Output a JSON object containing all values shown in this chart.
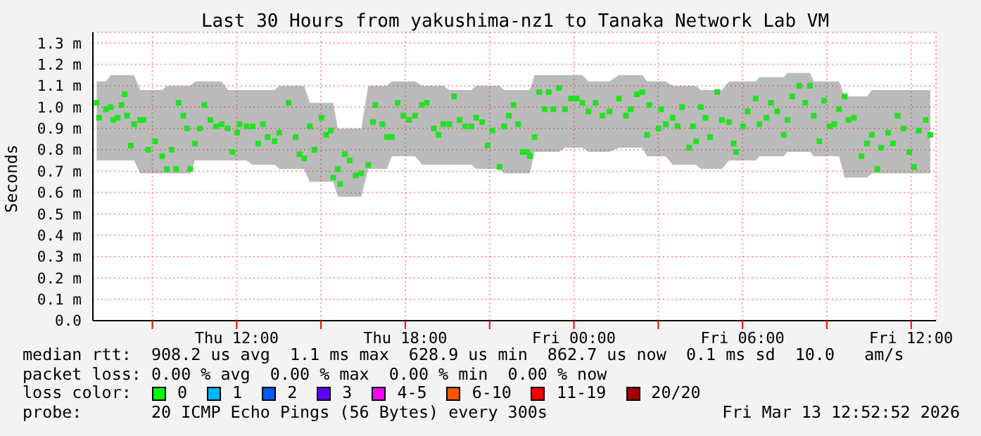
{
  "chart_data": {
    "type": "scatter",
    "title": "Last 30 Hours from yakushima-nz1 to Tanaka Network Lab VM",
    "ylabel": "Seconds",
    "xlim": [
      "2026-03-12T06:53",
      "2026-03-13T12:53"
    ],
    "xticks": [
      {
        "value": "2026-03-12T09:00",
        "label": null
      },
      {
        "value": "2026-03-12T12:00",
        "label": "Thu 12:00"
      },
      {
        "value": "2026-03-12T15:00",
        "label": null
      },
      {
        "value": "2026-03-12T18:00",
        "label": "Thu 18:00"
      },
      {
        "value": "2026-03-12T21:00",
        "label": null
      },
      {
        "value": "2026-03-13T00:00",
        "label": "Fri 00:00"
      },
      {
        "value": "2026-03-13T03:00",
        "label": null
      },
      {
        "value": "2026-03-13T06:00",
        "label": "Fri 06:00"
      },
      {
        "value": "2026-03-13T09:00",
        "label": null
      },
      {
        "value": "2026-03-13T12:00",
        "label": "Fri 12:00"
      }
    ],
    "ylim": [
      0,
      1.35
    ],
    "yticks": [
      {
        "value": 0,
        "label": "0.0"
      },
      {
        "value": 0.1,
        "label": "0.1 m"
      },
      {
        "value": 0.2,
        "label": "0.2 m"
      },
      {
        "value": 0.3,
        "label": "0.3 m"
      },
      {
        "value": 0.4,
        "label": "0.4 m"
      },
      {
        "value": 0.5,
        "label": "0.5 m"
      },
      {
        "value": 0.6,
        "label": "0.6 m"
      },
      {
        "value": 0.7,
        "label": "0.7 m"
      },
      {
        "value": 0.8,
        "label": "0.8 m"
      },
      {
        "value": 0.9,
        "label": "0.9 m"
      },
      {
        "value": 1.0,
        "label": "1.0 m"
      },
      {
        "value": 1.1,
        "label": "1.1 m"
      },
      {
        "value": 1.2,
        "label": "1.2 m"
      },
      {
        "value": 1.3,
        "label": "1.3 m"
      }
    ],
    "grid": true,
    "marker": "square",
    "series": [
      {
        "color": "#22e022",
        "x": [
          "2026-03-12T07:01",
          "2026-03-12T07:06",
          "2026-03-12T07:21",
          "2026-03-12T07:31",
          "2026-03-12T07:36",
          "2026-03-12T07:46",
          "2026-03-12T07:54",
          "2026-03-12T08:01",
          "2026-03-12T08:06",
          "2026-03-12T08:14",
          "2026-03-12T08:21",
          "2026-03-12T08:34",
          "2026-03-12T08:41",
          "2026-03-12T08:51",
          "2026-03-12T09:06",
          "2026-03-12T09:21",
          "2026-03-12T09:31",
          "2026-03-12T09:41",
          "2026-03-12T09:51",
          "2026-03-12T09:56",
          "2026-03-12T10:06",
          "2026-03-12T10:14",
          "2026-03-12T10:21",
          "2026-03-12T10:31",
          "2026-03-12T10:41",
          "2026-03-12T10:51",
          "2026-03-12T11:04",
          "2026-03-12T11:16",
          "2026-03-12T11:28",
          "2026-03-12T11:41",
          "2026-03-12T11:51",
          "2026-03-12T12:01",
          "2026-03-12T12:06",
          "2026-03-12T12:21",
          "2026-03-12T12:34",
          "2026-03-12T12:46",
          "2026-03-12T12:56",
          "2026-03-12T13:06",
          "2026-03-12T13:21",
          "2026-03-12T13:31",
          "2026-03-12T13:51",
          "2026-03-12T14:06",
          "2026-03-12T14:14",
          "2026-03-12T14:24",
          "2026-03-12T14:36",
          "2026-03-12T14:46",
          "2026-03-12T15:01",
          "2026-03-12T15:11",
          "2026-03-12T15:21",
          "2026-03-12T15:26",
          "2026-03-12T15:36",
          "2026-03-12T15:41",
          "2026-03-12T15:51",
          "2026-03-12T16:01",
          "2026-03-12T16:14",
          "2026-03-12T16:26",
          "2026-03-12T16:41",
          "2026-03-12T16:51",
          "2026-03-12T16:56",
          "2026-03-12T17:11",
          "2026-03-12T17:21",
          "2026-03-12T17:31",
          "2026-03-12T17:44",
          "2026-03-12T17:56",
          "2026-03-12T18:08",
          "2026-03-12T18:21",
          "2026-03-12T18:36",
          "2026-03-12T18:46",
          "2026-03-12T19:01",
          "2026-03-12T19:11",
          "2026-03-12T19:21",
          "2026-03-12T19:34",
          "2026-03-12T19:44",
          "2026-03-12T19:56",
          "2026-03-12T20:08",
          "2026-03-12T20:21",
          "2026-03-12T20:31",
          "2026-03-12T20:44",
          "2026-03-12T20:56",
          "2026-03-12T21:06",
          "2026-03-12T21:21",
          "2026-03-12T21:31",
          "2026-03-12T21:41",
          "2026-03-12T21:51",
          "2026-03-12T22:01",
          "2026-03-12T22:11",
          "2026-03-12T22:21",
          "2026-03-12T22:26",
          "2026-03-12T22:36",
          "2026-03-12T22:46",
          "2026-03-12T22:58",
          "2026-03-12T23:06",
          "2026-03-12T23:16",
          "2026-03-12T23:28",
          "2026-03-12T23:41",
          "2026-03-12T23:54",
          "2026-03-13T00:06",
          "2026-03-13T00:18",
          "2026-03-13T00:31",
          "2026-03-13T00:46",
          "2026-03-13T01:01",
          "2026-03-13T01:16",
          "2026-03-13T01:36",
          "2026-03-13T01:51",
          "2026-03-13T02:01",
          "2026-03-13T02:14",
          "2026-03-13T02:26",
          "2026-03-13T02:36",
          "2026-03-13T02:41",
          "2026-03-13T03:01",
          "2026-03-13T03:06",
          "2026-03-13T03:16",
          "2026-03-13T03:31",
          "2026-03-13T03:41",
          "2026-03-13T03:51",
          "2026-03-13T04:06",
          "2026-03-13T04:14",
          "2026-03-13T04:21",
          "2026-03-13T04:31",
          "2026-03-13T04:41",
          "2026-03-13T04:51",
          "2026-03-13T05:06",
          "2026-03-13T05:16",
          "2026-03-13T05:31",
          "2026-03-13T05:41",
          "2026-03-13T05:46",
          "2026-03-13T06:01",
          "2026-03-13T06:11",
          "2026-03-13T06:28",
          "2026-03-13T06:36",
          "2026-03-13T06:51",
          "2026-03-13T07:01",
          "2026-03-13T07:14",
          "2026-03-13T07:28",
          "2026-03-13T07:36",
          "2026-03-13T07:46",
          "2026-03-13T08:01",
          "2026-03-13T08:14",
          "2026-03-13T08:24",
          "2026-03-13T08:32",
          "2026-03-13T08:44",
          "2026-03-13T08:54",
          "2026-03-13T09:06",
          "2026-03-13T09:16",
          "2026-03-13T09:26",
          "2026-03-13T09:38",
          "2026-03-13T09:46",
          "2026-03-13T09:58",
          "2026-03-13T10:14",
          "2026-03-13T10:26",
          "2026-03-13T10:36",
          "2026-03-13T10:48",
          "2026-03-13T10:56",
          "2026-03-13T11:11",
          "2026-03-13T11:21",
          "2026-03-13T11:31",
          "2026-03-13T11:44",
          "2026-03-13T11:56",
          "2026-03-13T12:06",
          "2026-03-13T12:16",
          "2026-03-13T12:31",
          "2026-03-13T12:41"
        ],
        "values": [
          1.02,
          0.95,
          0.99,
          1.0,
          0.94,
          0.95,
          1.01,
          1.06,
          0.96,
          0.82,
          0.92,
          0.94,
          0.94,
          0.8,
          0.84,
          0.77,
          0.71,
          0.8,
          0.71,
          1.02,
          0.96,
          0.9,
          0.71,
          0.83,
          0.9,
          1.01,
          0.94,
          0.91,
          0.92,
          0.9,
          0.79,
          0.88,
          0.92,
          0.91,
          0.91,
          0.83,
          0.92,
          0.86,
          0.84,
          0.88,
          1.02,
          0.86,
          0.78,
          0.76,
          0.91,
          0.8,
          0.95,
          0.87,
          0.89,
          0.67,
          0.71,
          0.64,
          0.78,
          0.75,
          0.68,
          0.69,
          0.73,
          0.93,
          1.01,
          0.92,
          0.86,
          0.86,
          1.02,
          0.96,
          0.94,
          0.96,
          1.01,
          1.02,
          0.9,
          0.87,
          0.92,
          0.92,
          1.05,
          0.94,
          0.91,
          0.91,
          0.95,
          0.93,
          0.82,
          0.89,
          0.72,
          0.91,
          0.96,
          1.01,
          0.92,
          0.79,
          0.79,
          0.77,
          0.86,
          1.07,
          0.99,
          1.07,
          0.99,
          1.09,
          0.99,
          1.04,
          1.04,
          1.02,
          0.98,
          1.02,
          0.96,
          0.98,
          1.04,
          0.96,
          0.99,
          1.06,
          1.07,
          0.87,
          1.01,
          0.9,
          0.99,
          0.92,
          0.95,
          0.91,
          1.0,
          0.81,
          0.91,
          0.84,
          1.0,
          0.95,
          0.86,
          1.07,
          0.94,
          0.93,
          0.83,
          0.79,
          0.91,
          0.98,
          1.04,
          0.92,
          0.95,
          1.02,
          0.98,
          0.87,
          0.94,
          1.05,
          1.1,
          1.02,
          1.1,
          0.96,
          0.84,
          1.03,
          0.91,
          0.92,
          0.99,
          1.05,
          0.94,
          0.95,
          0.77,
          0.83,
          0.87,
          0.71,
          0.81,
          0.88,
          0.83,
          0.96,
          0.9,
          0.79,
          0.72,
          0.89,
          0.94,
          0.87
        ],
        "lower": [
          0.75,
          0.75,
          0.75,
          0.75,
          0.75,
          0.75,
          0.75,
          0.75,
          0.75,
          0.75,
          0.75,
          0.69,
          0.69,
          0.69,
          0.69,
          0.69,
          0.69,
          0.69,
          0.69,
          0.69,
          0.69,
          0.69,
          0.69,
          0.75,
          0.75,
          0.75,
          0.75,
          0.75,
          0.75,
          0.75,
          0.75,
          0.75,
          0.75,
          0.75,
          0.73,
          0.73,
          0.73,
          0.73,
          0.73,
          0.71,
          0.71,
          0.71,
          0.71,
          0.71,
          0.65,
          0.65,
          0.65,
          0.65,
          0.65,
          0.65,
          0.58,
          0.58,
          0.58,
          0.58,
          0.58,
          0.58,
          0.71,
          0.71,
          0.71,
          0.71,
          0.71,
          0.77,
          0.77,
          0.77,
          0.77,
          0.77,
          0.73,
          0.73,
          0.73,
          0.73,
          0.73,
          0.73,
          0.73,
          0.73,
          0.73,
          0.73,
          0.71,
          0.71,
          0.71,
          0.71,
          0.71,
          0.69,
          0.69,
          0.69,
          0.69,
          0.69,
          0.69,
          0.69,
          0.79,
          0.79,
          0.79,
          0.79,
          0.79,
          0.79,
          0.81,
          0.81,
          0.81,
          0.81,
          0.79,
          0.79,
          0.79,
          0.79,
          0.81,
          0.81,
          0.81,
          0.81,
          0.81,
          0.77,
          0.77,
          0.77,
          0.77,
          0.77,
          0.73,
          0.73,
          0.73,
          0.73,
          0.73,
          0.73,
          0.71,
          0.71,
          0.71,
          0.71,
          0.71,
          0.75,
          0.75,
          0.75,
          0.75,
          0.75,
          0.75,
          0.77,
          0.77,
          0.77,
          0.77,
          0.77,
          0.79,
          0.79,
          0.79,
          0.79,
          0.79,
          0.77,
          0.77,
          0.77,
          0.77,
          0.77,
          0.77,
          0.67,
          0.67,
          0.67,
          0.67,
          0.67,
          0.69,
          0.69,
          0.69,
          0.69,
          0.69,
          0.69,
          0.69,
          0.69,
          0.69,
          0.69,
          0.69,
          0.69
        ],
        "upper": [
          1.12,
          1.12,
          1.12,
          1.15,
          1.15,
          1.15,
          1.15,
          1.15,
          1.15,
          1.15,
          1.15,
          1.08,
          1.08,
          1.08,
          1.08,
          1.08,
          1.1,
          1.1,
          1.1,
          1.1,
          1.1,
          1.1,
          1.1,
          1.12,
          1.12,
          1.12,
          1.12,
          1.12,
          1.12,
          1.08,
          1.08,
          1.08,
          1.08,
          1.08,
          1.08,
          1.08,
          1.08,
          1.08,
          1.08,
          1.1,
          1.1,
          1.1,
          1.1,
          1.1,
          1.02,
          1.02,
          1.02,
          1.02,
          1.02,
          1.02,
          0.9,
          0.9,
          0.9,
          0.9,
          0.9,
          0.9,
          1.1,
          1.1,
          1.1,
          1.1,
          1.1,
          1.12,
          1.12,
          1.12,
          1.12,
          1.12,
          1.1,
          1.1,
          1.1,
          1.1,
          1.1,
          1.08,
          1.08,
          1.08,
          1.08,
          1.08,
          1.1,
          1.1,
          1.1,
          1.1,
          1.1,
          1.08,
          1.08,
          1.08,
          1.08,
          1.08,
          1.08,
          1.08,
          1.15,
          1.15,
          1.15,
          1.15,
          1.15,
          1.15,
          1.15,
          1.15,
          1.15,
          1.15,
          1.12,
          1.12,
          1.12,
          1.12,
          1.15,
          1.15,
          1.15,
          1.15,
          1.15,
          1.12,
          1.12,
          1.12,
          1.12,
          1.12,
          1.1,
          1.1,
          1.1,
          1.1,
          1.1,
          1.1,
          1.08,
          1.08,
          1.08,
          1.08,
          1.08,
          1.12,
          1.12,
          1.12,
          1.12,
          1.12,
          1.12,
          1.14,
          1.14,
          1.14,
          1.14,
          1.14,
          1.16,
          1.16,
          1.16,
          1.16,
          1.16,
          1.12,
          1.12,
          1.12,
          1.12,
          1.12,
          1.12,
          1.05,
          1.05,
          1.05,
          1.05,
          1.05,
          1.08,
          1.08,
          1.08,
          1.08,
          1.08,
          1.08,
          1.08,
          1.08,
          1.08,
          1.08,
          1.08,
          1.08
        ]
      }
    ],
    "annotations": [
      "median rtt:  908.2 us avg  1.1 ms max  628.9 us min  862.7 us now  0.1 ms sd  10.0   am/s",
      "packet loss: 0.00 % avg  0.00 % max  0.00 % min  0.00 % now",
      "loss color:",
      "0",
      "1",
      "2",
      "3",
      "4-5",
      "6-10",
      "11-19",
      "20/20",
      "probe:       20 ICMP Echo Pings (56 Bytes) every 300s",
      "Fri Mar 13 12:52:52 2026"
    ]
  }
}
